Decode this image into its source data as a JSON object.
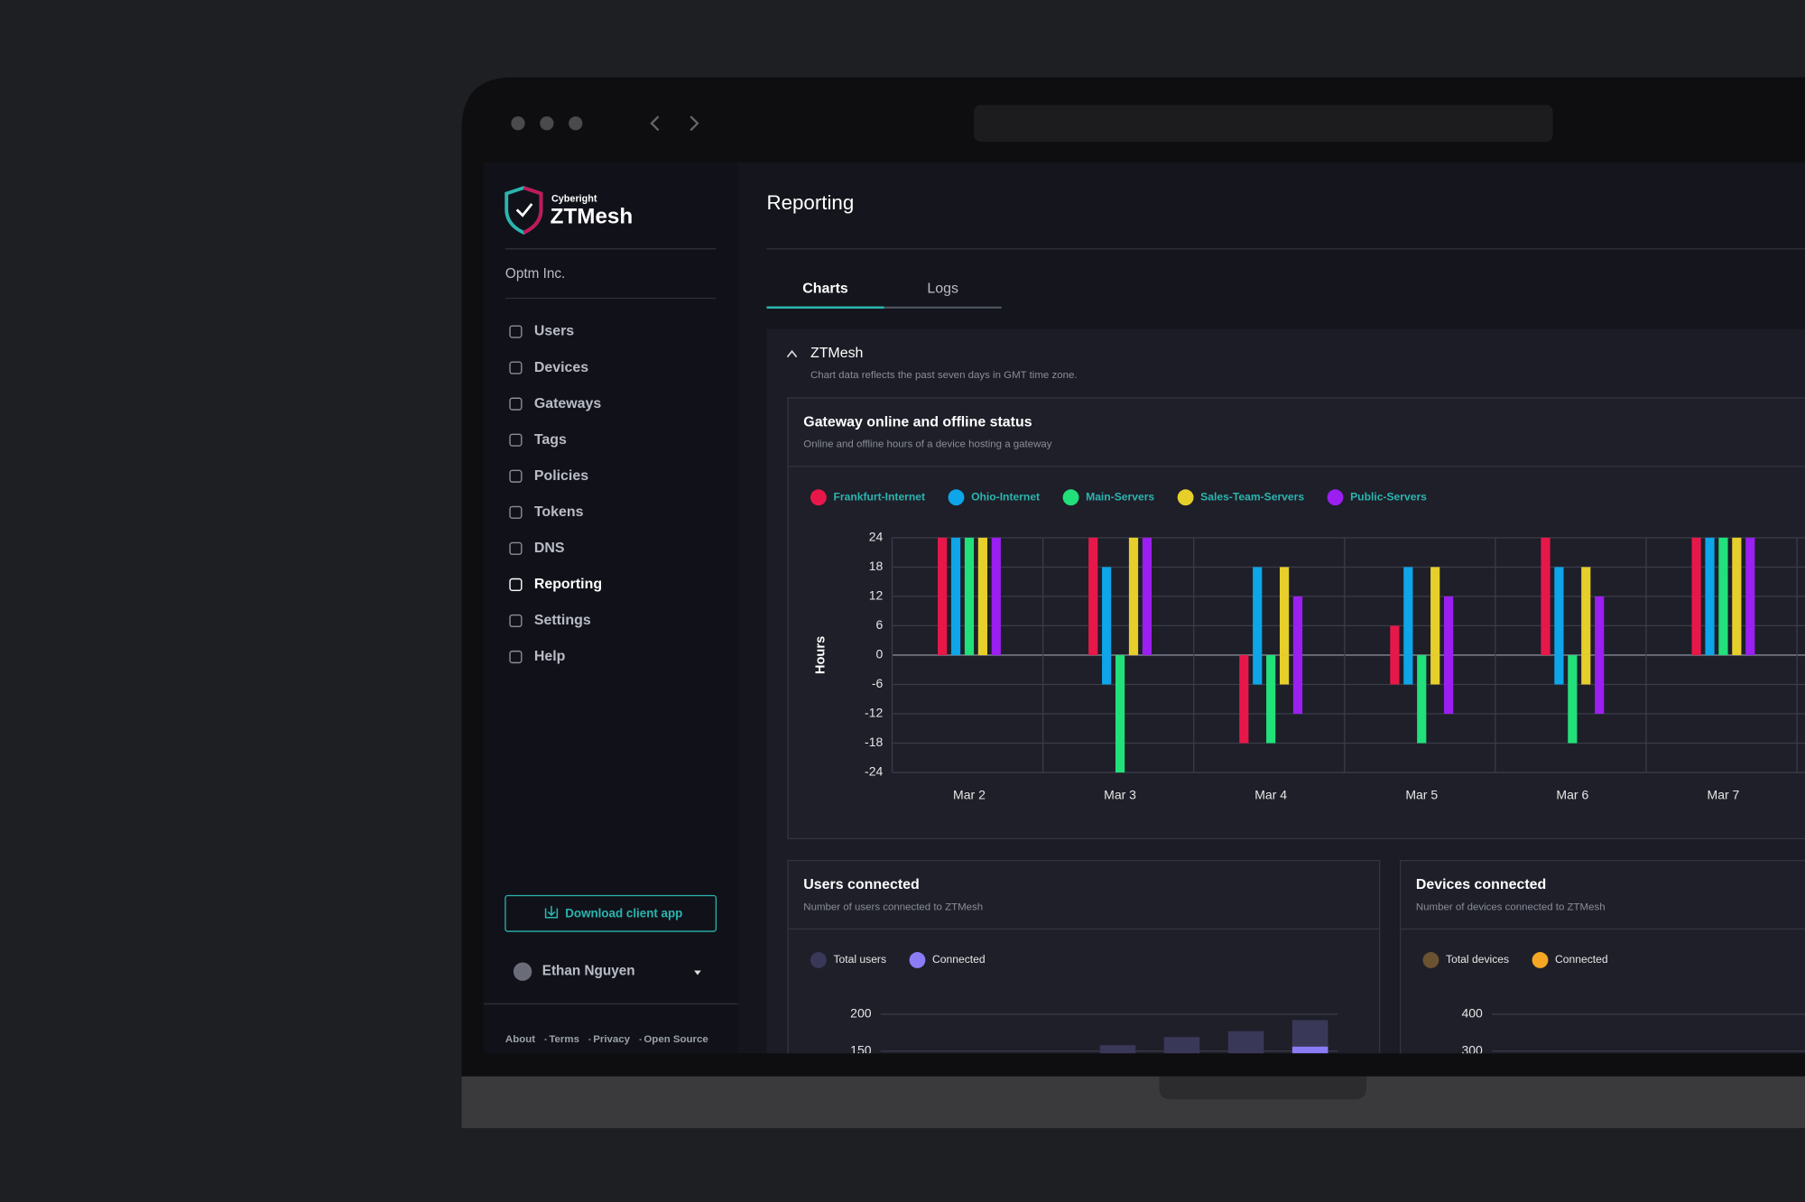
{
  "sidebar": {
    "brand_small": "Cyberight",
    "brand": "ZTMesh",
    "org": "Optm Inc.",
    "nav": [
      "Users",
      "Devices",
      "Gateways",
      "Tags",
      "Policies",
      "Tokens",
      "DNS",
      "Reporting",
      "Settings",
      "Help"
    ],
    "active_nav": 7,
    "download_button": "Download client app",
    "user": "Ethan Nguyen",
    "footer_links": [
      "About",
      "Terms",
      "Privacy",
      "Open Source"
    ]
  },
  "page": {
    "title": "Reporting",
    "tabs": [
      "Charts",
      "Logs"
    ],
    "active_tab": 0,
    "section_title": "ZTMesh",
    "section_note": "Chart data reflects the past seven days in GMT time zone."
  },
  "chart_data": [
    {
      "type": "bar",
      "title": "Gateway online and offline status",
      "subtitle": "Online and offline hours of a device hosting a gateway",
      "y_label": "Hours",
      "categories": [
        "Mar 2",
        "Mar 3",
        "Mar 4",
        "Mar 5",
        "Mar 6",
        "Mar 7"
      ],
      "series": [
        {
          "name": "Frankfurt-Internet",
          "color": "#e8174a",
          "values": [
            24,
            24,
            0,
            6,
            24,
            24
          ],
          "offline_values": [
            0,
            0,
            -18,
            -6,
            0,
            0
          ]
        },
        {
          "name": "Ohio-Internet",
          "color": "#0ea5e9",
          "values": [
            24,
            18,
            18,
            18,
            18,
            24
          ],
          "offline_values": [
            0,
            -6,
            -6,
            -6,
            -6,
            0
          ]
        },
        {
          "name": "Main-Servers",
          "color": "#22e07a",
          "values": [
            24,
            0,
            0,
            0,
            0,
            24
          ],
          "offline_values": [
            0,
            -24,
            -18,
            -18,
            -18,
            0
          ]
        },
        {
          "name": "Sales-Team-Servers",
          "color": "#e6cf2a",
          "values": [
            24,
            24,
            18,
            18,
            18,
            24
          ],
          "offline_values": [
            0,
            0,
            -6,
            -6,
            -6,
            0
          ]
        },
        {
          "name": "Public-Servers",
          "color": "#9b1ff0",
          "values": [
            24,
            24,
            12,
            12,
            12,
            24
          ],
          "offline_values": [
            0,
            0,
            -12,
            -12,
            -12,
            0
          ]
        }
      ],
      "ylim": [
        -24,
        24
      ],
      "yticks": [
        24,
        18,
        12,
        6,
        0,
        -6,
        -12,
        -18,
        -24
      ],
      "grid": true,
      "legend": "top-left"
    },
    {
      "type": "bar",
      "title": "Users connected",
      "subtitle": "Number of users connected to ZTMesh",
      "categories": [
        null,
        null,
        null,
        null
      ],
      "series": [
        {
          "name": "Total users",
          "color": "#3a3858",
          "values": [
            158,
            169,
            177,
            192
          ]
        },
        {
          "name": "Connected",
          "color": "#8b7cf6",
          "values": [
            null,
            null,
            null,
            156
          ]
        }
      ],
      "ylim": [
        0,
        200
      ],
      "yticks": [
        200,
        150
      ],
      "grid": true,
      "legend": "top-left"
    },
    {
      "type": "bar",
      "title": "Devices connected",
      "subtitle": "Number of devices connected to ZTMesh",
      "categories": [],
      "series": [
        {
          "name": "Total devices",
          "color": "#6b5230",
          "values": []
        },
        {
          "name": "Connected",
          "color": "#f5a623",
          "values": []
        }
      ],
      "ylim": [
        0,
        400
      ],
      "yticks": [
        400,
        300
      ],
      "grid": true,
      "legend": "top-left"
    }
  ]
}
